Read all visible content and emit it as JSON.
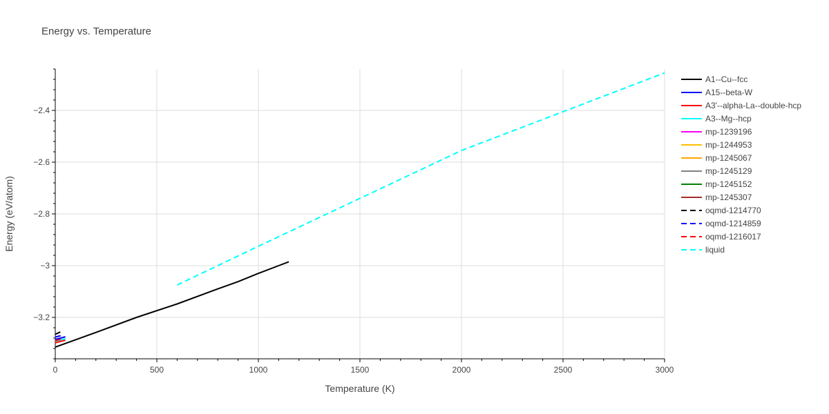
{
  "chart_data": {
    "type": "line",
    "title": "Energy vs. Temperature",
    "xlabel": "Temperature (K)",
    "ylabel": "Energy (eV/atom)",
    "xlim": [
      0,
      3000
    ],
    "ylim": [
      -3.36,
      -2.24
    ],
    "xticks": [
      0,
      500,
      1000,
      1500,
      2000,
      2500,
      3000
    ],
    "xtick_labels": [
      "0",
      "500",
      "1000",
      "1500",
      "2000",
      "2500",
      "3000"
    ],
    "yticks": [
      -3.2,
      -3.0,
      -2.8,
      -2.6,
      -2.4
    ],
    "ytick_labels": [
      "−3.2",
      "−3",
      "−2.8",
      "−2.6",
      "−2.4"
    ],
    "grid": true,
    "legend_position": "right",
    "series": [
      {
        "name": "A1--Cu--fcc",
        "color": "#000000",
        "dash": "solid",
        "x": [
          0,
          200,
          400,
          600,
          800,
          900,
          1000,
          1100,
          1150
        ],
        "y": [
          -3.315,
          -3.258,
          -3.2,
          -3.148,
          -3.09,
          -3.062,
          -3.03,
          -3.0,
          -2.985
        ]
      },
      {
        "name": "A15--beta-W",
        "color": "#0000ff",
        "dash": "solid",
        "x": [
          0,
          50
        ],
        "y": [
          -3.285,
          -3.275
        ]
      },
      {
        "name": "A3'--alpha-La--double-hcp",
        "color": "#ff0000",
        "dash": "solid",
        "x": [
          0,
          50
        ],
        "y": [
          -3.298,
          -3.288
        ]
      },
      {
        "name": "A3--Mg--hcp",
        "color": "#00ffff",
        "dash": "solid",
        "x": [
          0,
          50
        ],
        "y": [
          -3.292,
          -3.282
        ]
      },
      {
        "name": "mp-1239196",
        "color": "#ff00ff",
        "dash": "solid",
        "x": [],
        "y": []
      },
      {
        "name": "mp-1244953",
        "color": "#ffc000",
        "dash": "solid",
        "x": [],
        "y": []
      },
      {
        "name": "mp-1245067",
        "color": "#ffa500",
        "dash": "solid",
        "x": [],
        "y": []
      },
      {
        "name": "mp-1245129",
        "color": "#808080",
        "dash": "solid",
        "x": [],
        "y": []
      },
      {
        "name": "mp-1245152",
        "color": "#008000",
        "dash": "solid",
        "x": [],
        "y": []
      },
      {
        "name": "mp-1245307",
        "color": "#a52a2a",
        "dash": "solid",
        "x": [],
        "y": []
      },
      {
        "name": "oqmd-1214770",
        "color": "#000000",
        "dash": "dash",
        "x": [
          0,
          30
        ],
        "y": [
          -3.265,
          -3.255
        ]
      },
      {
        "name": "oqmd-1214859",
        "color": "#0000ff",
        "dash": "dash",
        "x": [
          0,
          40
        ],
        "y": [
          -3.276,
          -3.268
        ]
      },
      {
        "name": "oqmd-1216017",
        "color": "#ff0000",
        "dash": "dash",
        "x": [
          0,
          40
        ],
        "y": [
          -3.29,
          -3.282
        ]
      },
      {
        "name": "liquid",
        "color": "#00ffff",
        "dash": "dash",
        "x": [
          600,
          1000,
          1500,
          2000,
          2500,
          3000
        ],
        "y": [
          -3.075,
          -2.925,
          -2.74,
          -2.555,
          -2.405,
          -2.255
        ]
      }
    ]
  }
}
